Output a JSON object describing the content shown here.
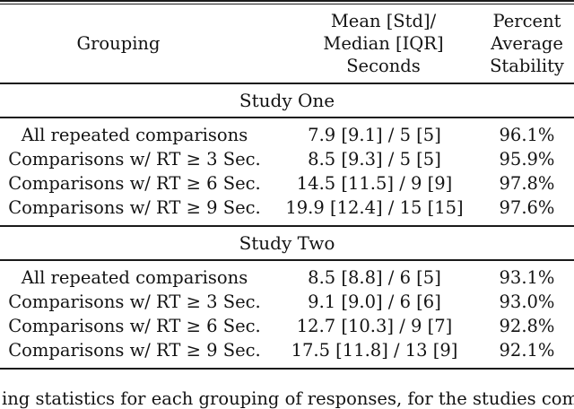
{
  "table": {
    "columns": {
      "grouping": {
        "label": "Grouping"
      },
      "mean_median": {
        "lines": [
          "Mean [Std]/",
          "Median [IQR]",
          "Seconds"
        ]
      },
      "stability": {
        "lines": [
          "Percent",
          "Average",
          "Stability"
        ]
      }
    },
    "sections": [
      {
        "title": "Study One",
        "rows": [
          {
            "grouping": "All repeated comparisons",
            "mean_median": "7.9 [9.1] / 5 [5]",
            "stability": "96.1%"
          },
          {
            "grouping": "Comparisons w/ RT ≥ 3 Sec.",
            "mean_median": "8.5 [9.3] / 5 [5]",
            "stability": "95.9%"
          },
          {
            "grouping": "Comparisons w/ RT ≥ 6 Sec.",
            "mean_median": "14.5 [11.5] / 9 [9]",
            "stability": "97.8%"
          },
          {
            "grouping": "Comparisons w/ RT ≥ 9 Sec.",
            "mean_median": "19.9 [12.4] / 15 [15]",
            "stability": "97.6%"
          }
        ]
      },
      {
        "title": "Study Two",
        "rows": [
          {
            "grouping": "All repeated comparisons",
            "mean_median": "8.5 [8.8] / 6 [5]",
            "stability": "93.1%"
          },
          {
            "grouping": "Comparisons w/ RT ≥ 3 Sec.",
            "mean_median": "9.1 [9.0] / 6 [6]",
            "stability": "93.0%"
          },
          {
            "grouping": "Comparisons w/ RT ≥ 6 Sec.",
            "mean_median": "12.7 [10.3] / 9 [7]",
            "stability": "92.8%"
          },
          {
            "grouping": "Comparisons w/ RT ≥ 9 Sec.",
            "mean_median": "17.5 [11.8] / 13 [9]",
            "stability": "92.1%"
          }
        ]
      }
    ]
  },
  "caption_fragment": "ing statistics for each grouping of responses, for the studies compared",
  "colors": {
    "background": "#ffffff",
    "text": "#131313",
    "rule": "#1a1a1a"
  }
}
